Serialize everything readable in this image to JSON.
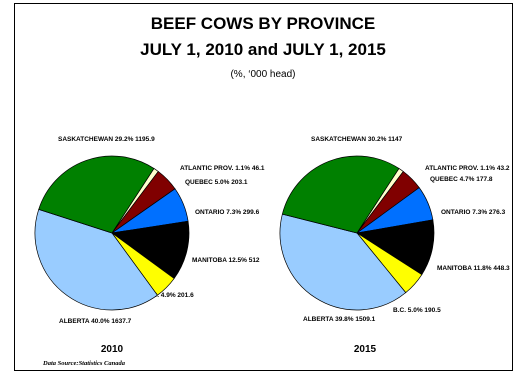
{
  "chart_data": {
    "type": "pie",
    "title": "BEEF COWS BY PROVINCE",
    "title_line2": "JULY 1, 2010 and JULY 1, 2015",
    "subtitle": "(%, ‘000 head)",
    "source": "Data Source:Statistics Canada",
    "colors": {
      "ATLANTIC PROV.": "#ffffcc",
      "QUEBEC": "#800000",
      "ONTARIO": "#0070ff",
      "MANITOBA": "#000000",
      "B.C.": "#ffff00",
      "ALBERTA": "#99ccff",
      "SASKATCHEWAN": "#008000"
    },
    "pies": [
      {
        "year": "2010",
        "slices": [
          {
            "name": "ATLANTIC PROV.",
            "pct": 1.1,
            "value": 46.1,
            "label": "ATLANTIC PROV. 1.1% 46.1"
          },
          {
            "name": "QUEBEC",
            "pct": 5.0,
            "value": 203.1,
            "label": "QUEBEC 5.0% 203.1"
          },
          {
            "name": "ONTARIO",
            "pct": 7.3,
            "value": 299.6,
            "label": "ONTARIO 7.3% 299.6"
          },
          {
            "name": "MANITOBA",
            "pct": 12.5,
            "value": 512,
            "label": "MANITOBA 12.5% 512"
          },
          {
            "name": "B.C.",
            "pct": 4.9,
            "value": 201.6,
            "label": "B.C. 4.9% 201.6"
          },
          {
            "name": "ALBERTA",
            "pct": 40.0,
            "value": 1637.7,
            "label": "ALBERTA 40.0% 1637.7"
          },
          {
            "name": "SASKATCHEWAN",
            "pct": 29.2,
            "value": 1195.9,
            "label": "SASKATCHEWAN 29.2% 1195.9"
          }
        ]
      },
      {
        "year": "2015",
        "slices": [
          {
            "name": "ATLANTIC PROV.",
            "pct": 1.1,
            "value": 43.2,
            "label": "ATLANTIC PROV. 1.1% 43.2"
          },
          {
            "name": "QUEBEC",
            "pct": 4.7,
            "value": 177.8,
            "label": "QUEBEC 4.7% 177.8"
          },
          {
            "name": "ONTARIO",
            "pct": 7.3,
            "value": 276.3,
            "label": "ONTARIO 7.3% 276.3"
          },
          {
            "name": "MANITOBA",
            "pct": 11.8,
            "value": 448.3,
            "label": "MANITOBA 11.8% 448.3"
          },
          {
            "name": "B.C.",
            "pct": 5.0,
            "value": 190.5,
            "label": "B.C. 5.0% 190.5"
          },
          {
            "name": "ALBERTA",
            "pct": 39.8,
            "value": 1509.1,
            "label": "ALBERTA 39.8% 1509.1"
          },
          {
            "name": "SASKATCHEWAN",
            "pct": 30.2,
            "value": 1147,
            "label": "SASKATCHEWAN 30.2% 1147"
          }
        ]
      }
    ]
  }
}
